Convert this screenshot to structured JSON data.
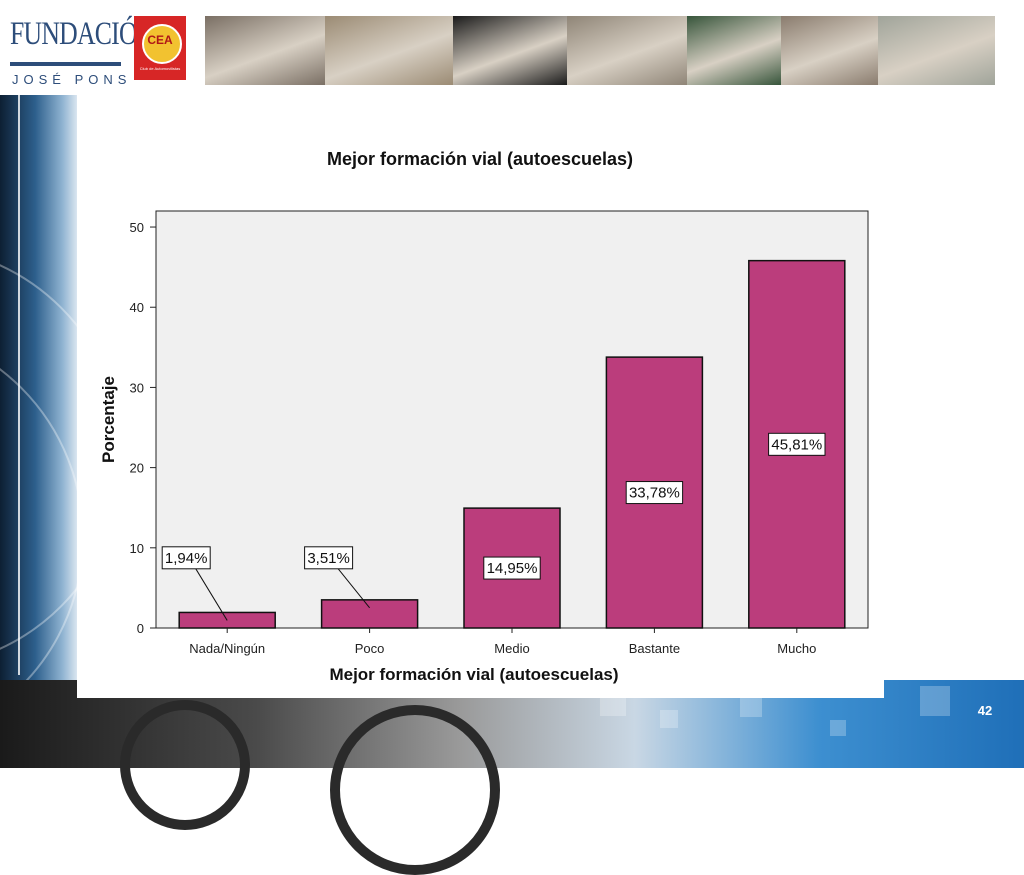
{
  "header": {
    "logo_line1": "FUNDACIÓN",
    "logo_line2": "JOSÉ PONS",
    "cea_logo_text": "CEA",
    "cea_logo_sub": "Club de Automovilistas",
    "photos": [
      {
        "name": "traffic-photo",
        "color": "#7a6f64"
      },
      {
        "name": "classroom-photo",
        "color": "#9b8b74"
      },
      {
        "name": "crash-test-photo",
        "color": "#1b1b1b"
      },
      {
        "name": "cyclists-photo",
        "color": "#8f8577"
      },
      {
        "name": "road-mat-photo",
        "color": "#37553b"
      },
      {
        "name": "students-photo",
        "color": "#8a7c6e"
      },
      {
        "name": "police-officer-photo",
        "color": "#a0a49a"
      }
    ]
  },
  "page_number": "42",
  "chart_data": {
    "type": "bar",
    "title": "Mejor formación vial (autoescuelas)",
    "xlabel": "Mejor formación vial (autoescuelas)",
    "ylabel": "Porcentaje",
    "categories": [
      "Nada/Ningún",
      "Poco",
      "Medio",
      "Bastante",
      "Mucho"
    ],
    "values": [
      1.94,
      3.51,
      14.95,
      33.78,
      45.81
    ],
    "data_labels": [
      "1,94%",
      "3,51%",
      "14,95%",
      "33,78%",
      "45,81%"
    ],
    "label_placement": [
      "callout",
      "callout",
      "inside",
      "inside",
      "inside"
    ],
    "ylim": [
      0,
      52
    ],
    "yticks": [
      0,
      10,
      20,
      30,
      40,
      50
    ],
    "bar_color": "#bb3d7c",
    "plot_background": "#f0f0f0",
    "grid": false,
    "legend": "none"
  }
}
